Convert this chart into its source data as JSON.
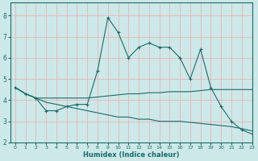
{
  "xlabel": "Humidex (Indice chaleur)",
  "bg_color": "#cde8e8",
  "line_color": "#1a6b6b",
  "grid_color": "#e8b4b4",
  "xlim": [
    -0.5,
    23
  ],
  "ylim": [
    2,
    8.6
  ],
  "yticks": [
    2,
    3,
    4,
    5,
    6,
    7,
    8
  ],
  "xticks": [
    0,
    1,
    2,
    3,
    4,
    5,
    6,
    7,
    8,
    9,
    10,
    11,
    12,
    13,
    14,
    15,
    16,
    17,
    18,
    19,
    20,
    21,
    22,
    23
  ],
  "series1_x": [
    0,
    1,
    2,
    3,
    4,
    5,
    6,
    7,
    8,
    9,
    10,
    11,
    12,
    13,
    14,
    15,
    16,
    17,
    18,
    19,
    20,
    21,
    22,
    23
  ],
  "series1_y": [
    4.6,
    4.3,
    4.1,
    3.5,
    3.5,
    3.7,
    3.8,
    3.8,
    5.4,
    7.9,
    7.2,
    6.0,
    6.5,
    6.7,
    6.5,
    6.5,
    6.0,
    5.0,
    6.4,
    4.6,
    3.7,
    3.0,
    2.6,
    2.4
  ],
  "series2_x": [
    0,
    1,
    2,
    3,
    4,
    5,
    6,
    7,
    8,
    9,
    10,
    11,
    12,
    13,
    14,
    15,
    16,
    17,
    18,
    19,
    20,
    21,
    22,
    23
  ],
  "series2_y": [
    4.6,
    4.3,
    4.1,
    4.1,
    4.1,
    4.1,
    4.1,
    4.1,
    4.15,
    4.2,
    4.25,
    4.3,
    4.3,
    4.35,
    4.35,
    4.4,
    4.4,
    4.4,
    4.45,
    4.5,
    4.5,
    4.5,
    4.5,
    4.5
  ],
  "series3_x": [
    0,
    1,
    2,
    3,
    4,
    5,
    6,
    7,
    8,
    9,
    10,
    11,
    12,
    13,
    14,
    15,
    16,
    17,
    18,
    19,
    20,
    21,
    22,
    23
  ],
  "series3_y": [
    4.6,
    4.3,
    4.1,
    3.9,
    3.8,
    3.7,
    3.6,
    3.5,
    3.4,
    3.3,
    3.2,
    3.2,
    3.1,
    3.1,
    3.0,
    3.0,
    3.0,
    2.95,
    2.9,
    2.85,
    2.8,
    2.75,
    2.65,
    2.55
  ]
}
